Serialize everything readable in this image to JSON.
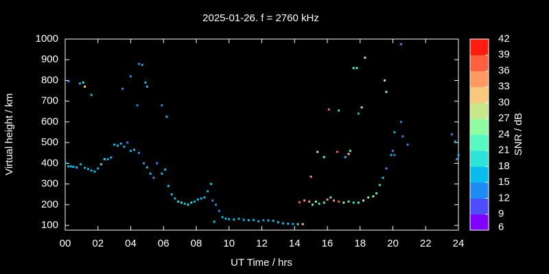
{
  "chart_data": {
    "type": "scatter",
    "title": "2025-01-26. f = 2760 kHz",
    "xlabel": "UT Time / hrs",
    "ylabel": "Virtual height / km",
    "colorbar_label": "SNR / dB",
    "xlim": [
      0,
      24
    ],
    "xticks": [
      {
        "value": 0,
        "label": "00"
      },
      {
        "value": 2,
        "label": "02"
      },
      {
        "value": 4,
        "label": "04"
      },
      {
        "value": 6,
        "label": "06"
      },
      {
        "value": 8,
        "label": "08"
      },
      10,
      12,
      14,
      16,
      18,
      20,
      22,
      24
    ],
    "ylim": [
      77,
      1000
    ],
    "yticks": [
      100,
      200,
      300,
      400,
      500,
      600,
      700,
      800,
      900,
      1000
    ],
    "zlim": [
      6,
      42
    ],
    "zticks": [
      6,
      9,
      12,
      15,
      18,
      21,
      24,
      27,
      30,
      33,
      36,
      39,
      42
    ],
    "colormap": [
      "#8000ff",
      "#4d4dfe",
      "#1f8cf4",
      "#08bdee",
      "#2ee3d8",
      "#58f8c2",
      "#90fca2",
      "#c8e68a",
      "#f8c87e",
      "#ff9a62",
      "#ff6040",
      "#ff1c0e"
    ],
    "x": [
      0.05,
      0.2,
      0.35,
      0.5,
      0.7,
      0.95,
      1.2,
      1.4,
      1.6,
      1.8,
      2.0,
      2.2,
      2.4,
      2.6,
      2.8,
      3.0,
      3.2,
      3.4,
      3.6,
      3.8,
      4.0,
      4.2,
      4.5,
      4.8,
      5.0,
      5.2,
      5.4,
      5.6,
      5.9,
      6.1,
      6.3,
      6.5,
      6.7,
      6.9,
      7.1,
      7.3,
      7.5,
      7.7,
      7.9,
      8.1,
      8.3,
      8.5,
      8.7,
      8.9,
      9.0,
      9.2,
      9.1,
      9.4,
      9.6,
      9.8,
      10.0,
      10.3,
      10.6,
      10.9,
      11.2,
      11.5,
      11.8,
      12.1,
      12.4,
      12.7,
      13.0,
      13.3,
      13.6,
      13.9,
      14.2,
      14.5,
      14.3,
      14.6,
      14.9,
      15.1,
      15.3,
      15.5,
      15.8,
      16.0,
      16.2,
      16.4,
      16.7,
      17.0,
      17.3,
      17.6,
      17.9,
      18.2,
      18.5,
      18.8,
      19.0,
      19.2,
      19.4,
      19.6,
      19.9,
      20.0,
      20.1,
      20.6,
      20.9,
      23.6,
      23.8,
      24.0,
      23.9,
      0.2,
      0.9,
      1.1,
      1.2,
      1.6,
      3.5,
      4.0,
      4.4,
      4.5,
      4.7,
      4.9,
      5.0,
      5.9,
      6.2,
      15.0,
      15.4,
      15.8,
      16.1,
      16.6,
      16.7,
      17.1,
      17.3,
      17.4,
      17.6,
      17.8,
      17.9,
      18.1,
      18.3,
      19.5,
      19.6,
      20.1,
      20.5,
      20.5
    ],
    "values": [
      400,
      385,
      385,
      383,
      380,
      395,
      378,
      372,
      365,
      360,
      375,
      395,
      420,
      420,
      428,
      490,
      485,
      495,
      480,
      500,
      460,
      465,
      450,
      400,
      380,
      350,
      330,
      400,
      350,
      370,
      290,
      250,
      230,
      215,
      210,
      205,
      200,
      210,
      215,
      225,
      230,
      235,
      265,
      300,
      220,
      200,
      118,
      170,
      140,
      133,
      130,
      128,
      132,
      127,
      125,
      126,
      120,
      125,
      124,
      122,
      115,
      110,
      108,
      107,
      106,
      106,
      212,
      220,
      215,
      200,
      215,
      205,
      210,
      225,
      235,
      220,
      215,
      210,
      215,
      210,
      210,
      220,
      235,
      240,
      255,
      295,
      330,
      375,
      440,
      460,
      440,
      530,
      490,
      540,
      505,
      440,
      420,
      795,
      785,
      790,
      770,
      730,
      760,
      820,
      680,
      880,
      875,
      790,
      770,
      680,
      625,
      335,
      455,
      430,
      660,
      455,
      655,
      430,
      445,
      460,
      860,
      860,
      640,
      670,
      910,
      800,
      745,
      550,
      600,
      975
    ],
    "snr": [
      15,
      16,
      16,
      15,
      16,
      16,
      15,
      16,
      15,
      16,
      16,
      18,
      18,
      16,
      16,
      16,
      15,
      17,
      16,
      13,
      16,
      17,
      13,
      13,
      15,
      16,
      13,
      13,
      16,
      17,
      17,
      17,
      17,
      19,
      18,
      17,
      19,
      19,
      17,
      17,
      17,
      16,
      16,
      16,
      13,
      13,
      16,
      13,
      16,
      16,
      16,
      16,
      16,
      16,
      16,
      16,
      16,
      13,
      16,
      16,
      17,
      16,
      17,
      16,
      19,
      30,
      36,
      33,
      33,
      22,
      24,
      19,
      23,
      33,
      22,
      33,
      36,
      24,
      21,
      18,
      22,
      24,
      24,
      26,
      21,
      18,
      16,
      13,
      16,
      13,
      13,
      13,
      13,
      13,
      16,
      16,
      13,
      12,
      16,
      19,
      30,
      16,
      13,
      13,
      13,
      13,
      16,
      16,
      16,
      13,
      16,
      33,
      24,
      22,
      36,
      36,
      19,
      16,
      31,
      22,
      22,
      22,
      16,
      27,
      24,
      27,
      24,
      16,
      13,
      12
    ]
  }
}
